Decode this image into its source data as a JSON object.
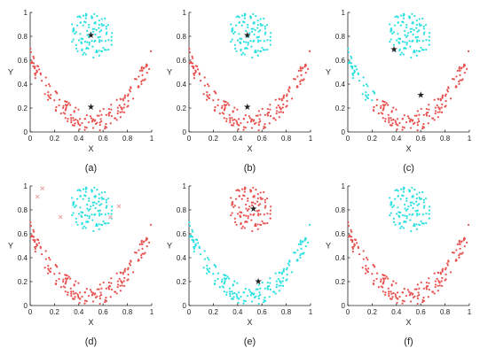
{
  "colors": {
    "red": "#e8504e",
    "cyan": "#29e0e0",
    "marker": "#444444",
    "outlier": "#e89a98",
    "axis": "#222222"
  },
  "chart_data": [
    {
      "type": "scatter",
      "caption": "(a)",
      "xlabel": "X",
      "ylabel": "Y",
      "xlim": [
        0,
        1
      ],
      "ylim": [
        0,
        1
      ],
      "xticks": [
        "0",
        "0.2",
        "0.4",
        "0.6",
        "0.8",
        "1"
      ],
      "yticks": [
        "0",
        "0.2",
        "0.4",
        "0.6",
        "0.8",
        "1"
      ],
      "grid": false,
      "cluster_colors": [
        "red",
        "cyan"
      ],
      "centers": [
        {
          "x": 0.5,
          "y": 0.21
        },
        {
          "x": 0.5,
          "y": 0.81
        }
      ],
      "crosses": []
    },
    {
      "type": "scatter",
      "caption": "(b)",
      "xlabel": "X",
      "ylabel": "Y",
      "xlim": [
        0,
        1
      ],
      "ylim": [
        0,
        1
      ],
      "xticks": [
        "0",
        "0.2",
        "0.4",
        "0.6",
        "0.8",
        "1"
      ],
      "yticks": [
        "0",
        "0.2",
        "0.4",
        "0.6",
        "0.8",
        "1"
      ],
      "grid": false,
      "cluster_colors": [
        "red",
        "cyan"
      ],
      "centers": [
        {
          "x": 0.48,
          "y": 0.21
        },
        {
          "x": 0.48,
          "y": 0.81
        }
      ],
      "crosses": []
    },
    {
      "type": "scatter",
      "caption": "(c)",
      "xlabel": "X",
      "ylabel": "Y",
      "xlim": [
        0,
        1
      ],
      "ylim": [
        0,
        1
      ],
      "xticks": [
        "0",
        "0.2",
        "0.4",
        "0.6",
        "0.8",
        "1"
      ],
      "yticks": [
        "0",
        "0.2",
        "0.4",
        "0.6",
        "0.8",
        "1"
      ],
      "grid": false,
      "cluster_colors": [
        "red",
        "cyan"
      ],
      "split": "diagonal",
      "centers": [
        {
          "x": 0.6,
          "y": 0.31
        },
        {
          "x": 0.38,
          "y": 0.69
        }
      ],
      "crosses": []
    },
    {
      "type": "scatter",
      "caption": "(d)",
      "xlabel": "X",
      "ylabel": "Y",
      "xlim": [
        0,
        1
      ],
      "ylim": [
        0,
        1
      ],
      "xticks": [
        "0",
        "0.2",
        "0.4",
        "0.6",
        "0.8",
        "1"
      ],
      "yticks": [
        "0",
        "0.2",
        "0.4",
        "0.6",
        "0.8",
        "1"
      ],
      "grid": false,
      "cluster_colors": [
        "red",
        "cyan"
      ],
      "centers": [],
      "crosses": [
        {
          "x": 0.1,
          "y": 0.98
        },
        {
          "x": 0.06,
          "y": 0.91
        },
        {
          "x": 0.25,
          "y": 0.74
        },
        {
          "x": 0.73,
          "y": 0.83
        },
        {
          "x": 0.66,
          "y": 0.74
        }
      ]
    },
    {
      "type": "scatter",
      "caption": "(e)",
      "xlabel": "X",
      "ylabel": "Y",
      "xlim": [
        0,
        1
      ],
      "ylim": [
        0,
        1
      ],
      "xticks": [
        "0",
        "0.2",
        "0.4",
        "0.6",
        "0.8",
        "1"
      ],
      "yticks": [
        "0",
        "0.2",
        "0.4",
        "0.6",
        "0.8",
        "1"
      ],
      "grid": false,
      "cluster_colors": [
        "cyan",
        "red"
      ],
      "centers": [
        {
          "x": 0.57,
          "y": 0.2
        },
        {
          "x": 0.53,
          "y": 0.81
        }
      ],
      "crosses": []
    },
    {
      "type": "scatter",
      "caption": "(f)",
      "xlabel": "X",
      "ylabel": "Y",
      "xlim": [
        0,
        1
      ],
      "ylim": [
        0,
        1
      ],
      "xticks": [
        "0",
        "0.2",
        "0.4",
        "0.6",
        "0.8",
        "1"
      ],
      "yticks": [
        "0",
        "0.2",
        "0.4",
        "0.6",
        "0.8",
        "1"
      ],
      "grid": false,
      "cluster_colors": [
        "red",
        "cyan"
      ],
      "centers": [],
      "crosses": []
    }
  ]
}
